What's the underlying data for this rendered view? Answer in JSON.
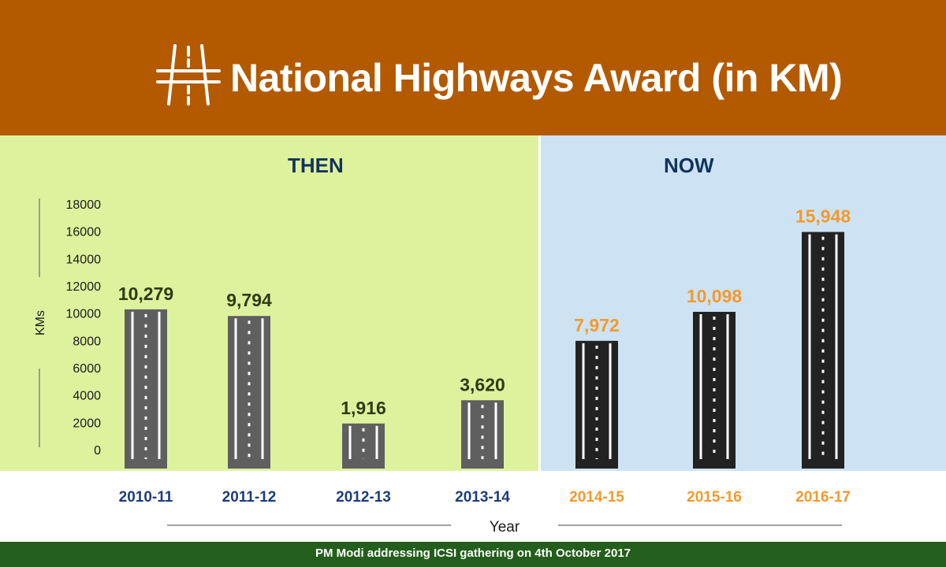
{
  "header": {
    "title": "National Highways Award (in KM)",
    "icon": "highway-icon"
  },
  "sections": {
    "then_label": "THEN",
    "now_label": "NOW"
  },
  "footer": {
    "caption": "PM Modi addressing ICSI gathering on 4th October 2017"
  },
  "colors": {
    "header_bg": "#b35a00",
    "then_bg": "#def29e",
    "now_bg": "#cde3f4",
    "then_bar": "#5f5f5f",
    "now_bar": "#222222",
    "then_label_color": "#2f3b10",
    "now_label_color": "#f39a2c",
    "then_year_color": "#1c3d7a",
    "now_year_color": "#f39a2c",
    "footer_bg": "#245e1c"
  },
  "chart_data": {
    "type": "bar",
    "title": "National Highways Award (in KM)",
    "xlabel": "Year",
    "ylabel": "KMs",
    "ylim": [
      0,
      18000
    ],
    "yticks": [
      0,
      2000,
      4000,
      6000,
      8000,
      10000,
      12000,
      14000,
      16000,
      18000
    ],
    "categories": [
      "2010-11",
      "2011-12",
      "2012-13",
      "2013-14",
      "2014-15",
      "2015-16",
      "2016-17"
    ],
    "values": [
      10279,
      9794,
      1916,
      3620,
      7972,
      10098,
      15948
    ],
    "value_labels": [
      "10,279",
      "9,794",
      "1,916",
      "3,620",
      "7,972",
      "10,098",
      "15,948"
    ],
    "groups": [
      "then",
      "then",
      "then",
      "then",
      "now",
      "now",
      "now"
    ],
    "grid": false,
    "legend": "none"
  }
}
